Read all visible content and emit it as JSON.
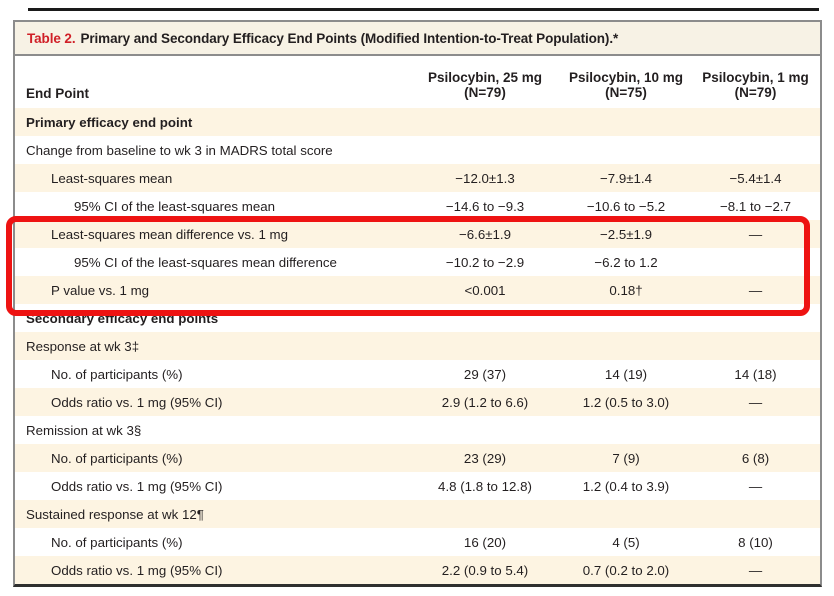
{
  "colors": {
    "accent_red": "#d02028",
    "highlight_red": "#ee1312",
    "row_cream": "#fdf4e2",
    "title_cream": "#f7f2e5",
    "border_gray": "#8c8c8c"
  },
  "table": {
    "label": "Table 2.",
    "title": "Primary and Secondary Efficacy End Points (Modified Intention-to-Treat Population).*",
    "endpoint_header": "End Point",
    "column_groups": [
      {
        "line1": "Psilocybin, 25 mg",
        "line2": "(N=79)"
      },
      {
        "line1": "Psilocybin, 10 mg",
        "line2": "(N=75)"
      },
      {
        "line1": "Psilocybin, 1 mg",
        "line2": "(N=79)"
      }
    ],
    "rows": [
      {
        "label": "Primary efficacy end point",
        "indent": 0,
        "bold": true,
        "values": [
          "",
          "",
          ""
        ]
      },
      {
        "label": "Change from baseline to wk 3 in MADRS total score",
        "indent": 0,
        "bold": false,
        "values": [
          "",
          "",
          ""
        ]
      },
      {
        "label": "Least-squares mean",
        "indent": 1,
        "bold": false,
        "values": [
          "−12.0±1.3",
          "−7.9±1.4",
          "−5.4±1.4"
        ]
      },
      {
        "label": "95% CI of the least-squares mean",
        "indent": 2,
        "bold": false,
        "values": [
          "−14.6 to −9.3",
          "−10.6 to −5.2",
          "−8.1 to −2.7"
        ]
      },
      {
        "label": "Least-squares mean difference vs. 1 mg",
        "indent": 1,
        "bold": false,
        "values": [
          "−6.6±1.9",
          "−2.5±1.9",
          "—"
        ]
      },
      {
        "label": "95% CI of the least-squares mean difference",
        "indent": 2,
        "bold": false,
        "values": [
          "−10.2 to −2.9",
          "−6.2 to 1.2",
          ""
        ]
      },
      {
        "label": "P value vs. 1 mg",
        "indent": 1,
        "bold": false,
        "values": [
          "<0.001",
          "0.18†",
          "—"
        ]
      },
      {
        "label": "Secondary efficacy end points",
        "indent": 0,
        "bold": true,
        "values": [
          "",
          "",
          ""
        ]
      },
      {
        "label": "Response at wk 3‡",
        "indent": 0,
        "bold": false,
        "values": [
          "",
          "",
          ""
        ]
      },
      {
        "label": "No. of participants (%)",
        "indent": 1,
        "bold": false,
        "values": [
          "29 (37)",
          "14 (19)",
          "14 (18)"
        ]
      },
      {
        "label": "Odds ratio vs. 1 mg (95% CI)",
        "indent": 1,
        "bold": false,
        "values": [
          "2.9 (1.2 to 6.6)",
          "1.2 (0.5 to 3.0)",
          "—"
        ]
      },
      {
        "label": "Remission at wk 3§",
        "indent": 0,
        "bold": false,
        "values": [
          "",
          "",
          ""
        ]
      },
      {
        "label": "No. of participants (%)",
        "indent": 1,
        "bold": false,
        "values": [
          "23 (29)",
          "7 (9)",
          "6 (8)"
        ]
      },
      {
        "label": "Odds ratio vs. 1 mg (95% CI)",
        "indent": 1,
        "bold": false,
        "values": [
          "4.8 (1.8 to 12.8)",
          "1.2 (0.4 to 3.9)",
          "—"
        ]
      },
      {
        "label": "Sustained response at wk 12¶",
        "indent": 0,
        "bold": false,
        "values": [
          "",
          "",
          ""
        ]
      },
      {
        "label": "No. of participants (%)",
        "indent": 1,
        "bold": false,
        "values": [
          "16 (20)",
          "4 (5)",
          "8 (10)"
        ]
      },
      {
        "label": "Odds ratio vs. 1 mg (95% CI)",
        "indent": 1,
        "bold": false,
        "values": [
          "2.2 (0.9 to 5.4)",
          "0.7 (0.2 to 2.0)",
          "—"
        ]
      }
    ]
  },
  "annotation": {
    "type": "red-highlight-box",
    "color": "#ee1312",
    "covers_rows": "Least-squares mean difference vs. 1 mg; 95% CI of the least-squares mean difference; P value vs. 1 mg"
  }
}
